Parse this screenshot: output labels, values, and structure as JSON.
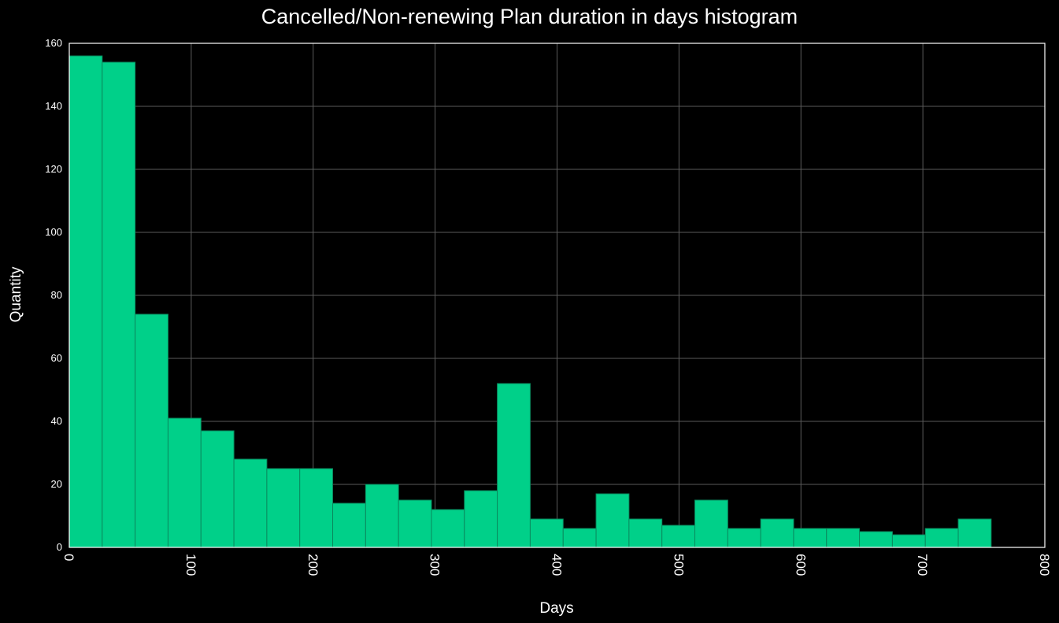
{
  "chart_data": {
    "type": "bar",
    "title": "Cancelled/Non-renewing Plan duration in days histogram",
    "xlabel": "Days",
    "ylabel": "Quantity",
    "xlim": [
      0,
      800
    ],
    "ylim": [
      0,
      160
    ],
    "x_ticks": [
      0,
      100,
      200,
      300,
      400,
      500,
      600,
      700,
      800
    ],
    "y_ticks": [
      0,
      20,
      40,
      60,
      80,
      100,
      120,
      140,
      160
    ],
    "grid": true,
    "bin_edges": [
      0,
      27,
      54,
      81,
      108,
      135,
      162,
      189,
      216,
      243,
      270,
      297,
      324,
      351,
      378,
      405,
      432,
      459,
      486,
      513,
      540,
      567,
      594,
      621,
      648,
      675,
      702,
      729,
      756
    ],
    "values": [
      156,
      154,
      74,
      41,
      37,
      28,
      25,
      25,
      14,
      20,
      15,
      12,
      18,
      52,
      9,
      6,
      17,
      9,
      7,
      15,
      6,
      9,
      6,
      6,
      5,
      4,
      6,
      9
    ],
    "colors": {
      "bar": "#00d089",
      "bar_edge": "#0a8a5e",
      "background": "#000000",
      "grid": "#5a5a5a",
      "axes": "#ffffff"
    }
  }
}
